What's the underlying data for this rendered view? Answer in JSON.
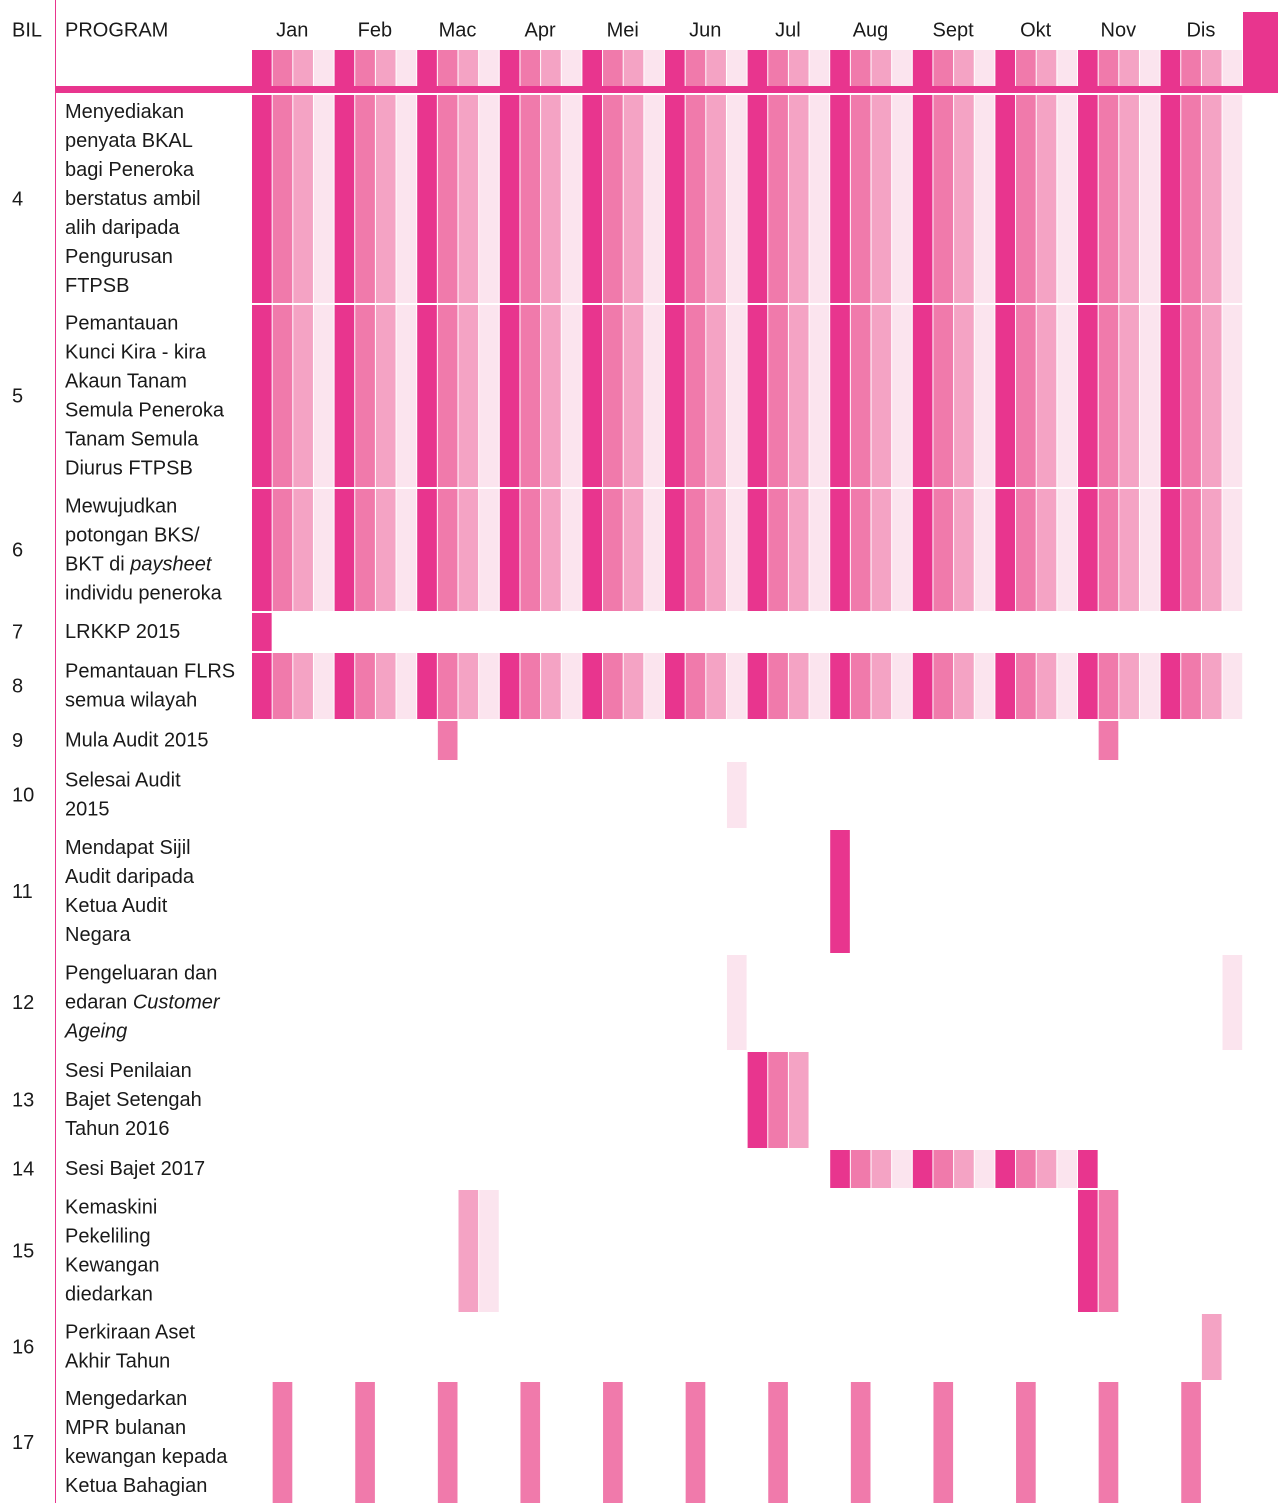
{
  "header": {
    "bil": "BIL",
    "program": "PROGRAM",
    "months": [
      "Jan",
      "Feb",
      "Mac",
      "Apr",
      "Mei",
      "Jun",
      "Jul",
      "Aug",
      "Sept",
      "Okt",
      "Nov",
      "Dis"
    ]
  },
  "rows": [
    {
      "bil": "4",
      "lines": [
        [
          "Menyediakan"
        ],
        [
          "penyata BKAL"
        ],
        [
          "bagi Peneroka"
        ],
        [
          "berstatus ambil"
        ],
        [
          "alih daripada"
        ],
        [
          "Pengurusan"
        ],
        [
          "FTPSB"
        ]
      ]
    },
    {
      "bil": "5",
      "lines": [
        [
          "Pemantauan"
        ],
        [
          "Kunci Kira - kira"
        ],
        [
          "Akaun Tanam"
        ],
        [
          "Semula Peneroka"
        ],
        [
          "Tanam Semula"
        ],
        [
          "Diurus FTPSB"
        ]
      ]
    },
    {
      "bil": "6",
      "lines": [
        [
          "Mewujudkan"
        ],
        [
          "potongan BKS/"
        ],
        [
          "BKT di ",
          {
            "text": "paysheet",
            "italic": true
          }
        ],
        [
          "individu peneroka"
        ]
      ]
    },
    {
      "bil": "7",
      "lines": [
        [
          "LRKKP 2015"
        ]
      ]
    },
    {
      "bil": "8",
      "lines": [
        [
          "Pemantauan FLRS"
        ],
        [
          "semua wilayah"
        ]
      ]
    },
    {
      "bil": "9",
      "lines": [
        [
          "Mula Audit 2015"
        ]
      ]
    },
    {
      "bil": "10",
      "lines": [
        [
          "Selesai Audit"
        ],
        [
          "2015"
        ]
      ]
    },
    {
      "bil": "11",
      "lines": [
        [
          "Mendapat Sijil"
        ],
        [
          "Audit daripada"
        ],
        [
          "Ketua Audit"
        ],
        [
          "Negara"
        ]
      ]
    },
    {
      "bil": "12",
      "lines": [
        [
          "Pengeluaran dan"
        ],
        [
          "edaran ",
          {
            "text": "Customer",
            "italic": true
          }
        ],
        [
          {
            "text": "Ageing",
            "italic": true
          }
        ]
      ]
    },
    {
      "bil": "13",
      "lines": [
        [
          "Sesi Penilaian"
        ],
        [
          "Bajet Setengah"
        ],
        [
          "Tahun 2016"
        ]
      ]
    },
    {
      "bil": "14",
      "lines": [
        [
          "Sesi Bajet 2017"
        ]
      ]
    },
    {
      "bil": "15",
      "lines": [
        [
          "Kemaskini"
        ],
        [
          "Pekeliling"
        ],
        [
          "Kewangan"
        ],
        [
          "diedarkan"
        ]
      ]
    },
    {
      "bil": "16",
      "lines": [
        [
          "Perkiraan Aset"
        ],
        [
          "Akhir Tahun"
        ]
      ]
    },
    {
      "bil": "17",
      "lines": [
        [
          "Mengedarkan"
        ],
        [
          "MPR bulanan"
        ],
        [
          "kewangan kepada"
        ],
        [
          "Ketua Bahagian"
        ]
      ]
    }
  ]
}
